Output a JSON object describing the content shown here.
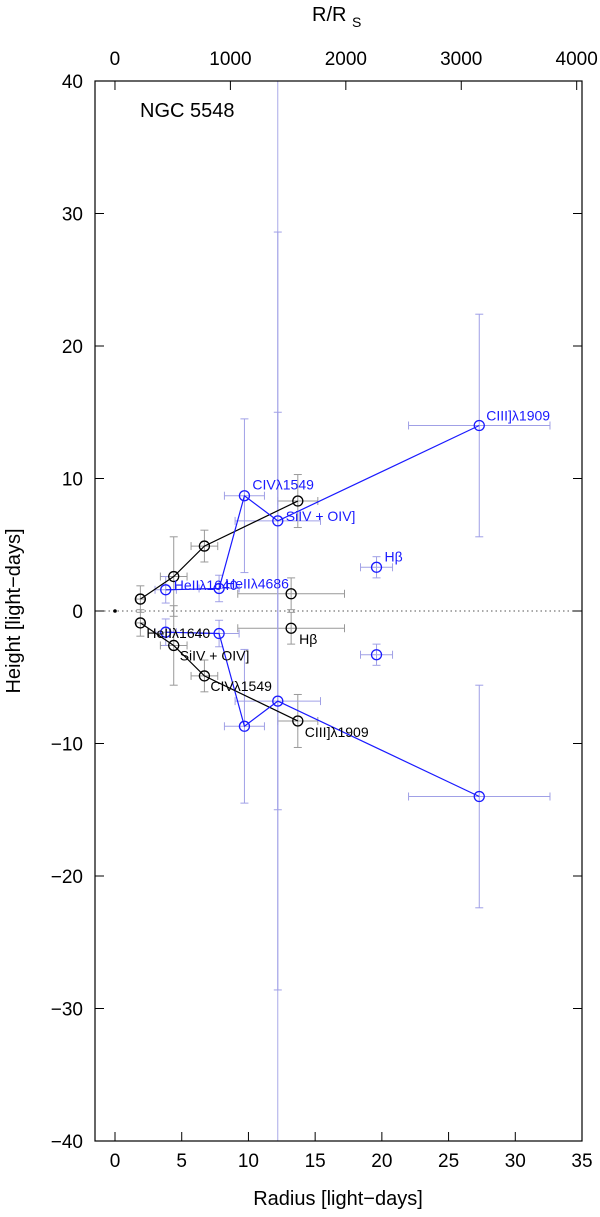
{
  "chart_data": {
    "type": "scatter",
    "title": "NGC 5548",
    "xlabel": "Radius  [light−days]",
    "ylabel": "Height  [light−days]",
    "x2label_main": "R/R",
    "x2label_sub": "S",
    "xlim": [
      -1.5,
      35
    ],
    "ylim": [
      -40,
      40
    ],
    "x2lim": [
      -173,
      4046
    ],
    "xticks": [
      0,
      5,
      10,
      15,
      20,
      25,
      30,
      35
    ],
    "xtick_labels": [
      "0",
      "5",
      "10",
      "15",
      "20",
      "25",
      "30",
      "35"
    ],
    "yticks": [
      -40,
      -30,
      -20,
      -10,
      0,
      10,
      20,
      30,
      40
    ],
    "ytick_labels": [
      "−40",
      "−30",
      "−20",
      "−10",
      "0",
      "10",
      "20",
      "30",
      "40"
    ],
    "x2ticks": [
      0,
      1000,
      2000,
      3000,
      4000
    ],
    "x2tick_labels": [
      "0",
      "1000",
      "2000",
      "3000",
      "4000"
    ],
    "colors": {
      "black": "#000000",
      "blue": "#1a1aff",
      "error": "#a0a0e6",
      "guide": "#a0a0e6"
    },
    "origin_point": [
      0,
      0
    ],
    "guide_x": 12.2,
    "series": [
      {
        "name": "black-upper",
        "color": "#000000",
        "connected": true,
        "points": [
          {
            "x": 1.9,
            "y": 0.9,
            "xerr": 0.3,
            "yerr": 1.0
          },
          {
            "x": 4.4,
            "y": 2.6,
            "xerr": 1.0,
            "yerr": 3.0
          },
          {
            "x": 6.7,
            "y": 4.9,
            "xerr": 1.0,
            "yerr": 1.2
          },
          {
            "x": 13.7,
            "y": 8.3,
            "xerr": 1.5,
            "yerr": 2.0
          }
        ]
      },
      {
        "name": "black-lower",
        "color": "#000000",
        "connected": true,
        "points": [
          {
            "x": 1.9,
            "y": -0.9,
            "xerr": 0.3,
            "yerr": 1.0
          },
          {
            "x": 4.4,
            "y": -2.6,
            "xerr": 1.0,
            "yerr": 3.0
          },
          {
            "x": 6.7,
            "y": -4.9,
            "xerr": 1.0,
            "yerr": 1.2
          },
          {
            "x": 13.7,
            "y": -8.3,
            "xerr": 1.5,
            "yerr": 2.0
          }
        ]
      },
      {
        "name": "black-hbeta",
        "color": "#000000",
        "connected": false,
        "points": [
          {
            "x": 13.2,
            "y": 1.3,
            "xerr": 4.0,
            "yerr": 1.2
          },
          {
            "x": 13.2,
            "y": -1.3,
            "xerr": 4.0,
            "yerr": 1.2
          }
        ]
      },
      {
        "name": "blue-upper",
        "color": "#1a1aff",
        "connected": true,
        "points": [
          {
            "x": 3.8,
            "y": 1.6,
            "xerr": 0.8,
            "yerr": 1.0
          },
          {
            "x": 7.8,
            "y": 1.7,
            "xerr": 1.5,
            "yerr": 1.0
          },
          {
            "x": 9.7,
            "y": 8.7,
            "xerr": 1.5,
            "yerr": 5.8
          },
          {
            "x": 12.2,
            "y": 6.8,
            "xerr": 3.2,
            "yerr": 21.8
          },
          {
            "x": 27.3,
            "y": 14.0,
            "xerr": 5.3,
            "yerr": 8.4
          }
        ]
      },
      {
        "name": "blue-lower",
        "color": "#1a1aff",
        "connected": true,
        "points": [
          {
            "x": 3.8,
            "y": -1.6,
            "xerr": 0.8,
            "yerr": 1.0
          },
          {
            "x": 7.8,
            "y": -1.7,
            "xerr": 1.5,
            "yerr": 1.0
          },
          {
            "x": 9.7,
            "y": -8.7,
            "xerr": 1.5,
            "yerr": 5.8
          },
          {
            "x": 12.2,
            "y": -6.8,
            "xerr": 3.2,
            "yerr": 21.8
          },
          {
            "x": 27.3,
            "y": -14.0,
            "xerr": 5.3,
            "yerr": 8.4
          }
        ]
      },
      {
        "name": "blue-hbeta",
        "color": "#1a1aff",
        "connected": false,
        "points": [
          {
            "x": 19.6,
            "y": 3.3,
            "xerr": 1.2,
            "yerr": 0.8
          },
          {
            "x": 19.6,
            "y": -3.3,
            "xerr": 1.2,
            "yerr": 0.8
          }
        ]
      }
    ],
    "annotations": [
      {
        "text": "CIII]λ1909",
        "x": 27.3,
        "y": 14.0,
        "color": "#1a1aff",
        "anchor": "start",
        "dx": 7,
        "dy": -5
      },
      {
        "text": "CIVλ1549",
        "x": 9.7,
        "y": 8.7,
        "color": "#1a1aff",
        "anchor": "start",
        "dx": 8,
        "dy": -6
      },
      {
        "text": "SiIV + OIV]",
        "x": 12.2,
        "y": 6.8,
        "color": "#1a1aff",
        "anchor": "start",
        "dx": 8,
        "dy": 0
      },
      {
        "text": "Hβ",
        "x": 19.6,
        "y": 3.3,
        "color": "#1a1aff",
        "anchor": "start",
        "dx": 8,
        "dy": -6
      },
      {
        "text": "HeIIλ1640",
        "x": 3.8,
        "y": 1.6,
        "color": "#1a1aff",
        "anchor": "start",
        "dx": 8,
        "dy": 0
      },
      {
        "text": "HeIIλ4686",
        "x": 7.8,
        "y": 1.7,
        "color": "#1a1aff",
        "anchor": "start",
        "dx": 6,
        "dy": 0
      },
      {
        "text": "HeIIλ1640",
        "x": 1.9,
        "y": -0.9,
        "color": "#000000",
        "anchor": "start",
        "dx": 6,
        "dy": 15
      },
      {
        "text": "SiIV + OIV]",
        "x": 4.4,
        "y": -2.6,
        "color": "#000000",
        "anchor": "start",
        "dx": 6,
        "dy": 15
      },
      {
        "text": "CIVλ1549",
        "x": 6.7,
        "y": -4.9,
        "color": "#000000",
        "anchor": "start",
        "dx": 6,
        "dy": 15
      },
      {
        "text": "CIII]λ1909",
        "x": 13.7,
        "y": -8.3,
        "color": "#000000",
        "anchor": "start",
        "dx": 7,
        "dy": 16
      },
      {
        "text": "Hβ",
        "x": 13.2,
        "y": -1.3,
        "color": "#000000",
        "anchor": "start",
        "dx": 8,
        "dy": 16
      }
    ]
  }
}
